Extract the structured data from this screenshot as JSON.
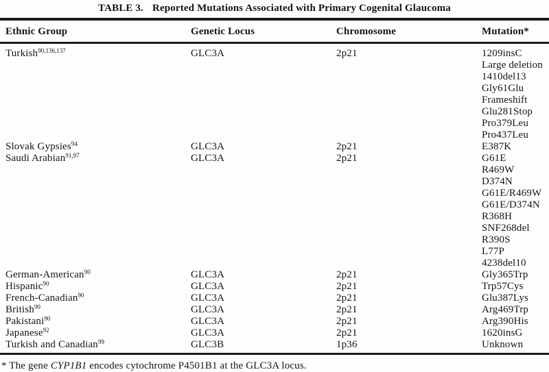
{
  "title": {
    "label": "TABLE 3.",
    "text": "Reported Mutations Associated with Primary Cogenital Glaucoma"
  },
  "columns": [
    "Ethnic Group",
    "Genetic Locus",
    "Chromosome",
    "Mutation*"
  ],
  "table": {
    "groups": [
      {
        "ethnic": "Turkish",
        "refs": "90,136,137",
        "locus": "GLC3A",
        "chromosome": "2p21",
        "mutations": [
          "1209insC",
          "Large deletion",
          "1410del13",
          "Gly61Glu",
          "Frameshift",
          "Glu281Stop",
          "Pro379Leu",
          "Pro437Leu"
        ]
      },
      {
        "ethnic": "Slovak Gypsies",
        "refs": "94",
        "locus": "GLC3A",
        "chromosome": "2p21",
        "mutations": [
          "E387K"
        ]
      },
      {
        "ethnic": "Saudi Arabian",
        "refs": "91,97",
        "locus": "GLC3A",
        "chromosome": "2p21",
        "mutations": [
          "G61E",
          "R469W",
          "D374N",
          "G61E/R469W",
          "G61E/D374N",
          "R368H",
          "SNF268del",
          "R390S",
          "L77P",
          "4238del10"
        ]
      },
      {
        "ethnic": "German-American",
        "refs": "90",
        "locus": "GLC3A",
        "chromosome": "2p21",
        "mutations": [
          "Gly365Trp"
        ]
      },
      {
        "ethnic": "Hispanic",
        "refs": "90",
        "locus": "GLC3A",
        "chromosome": "2p21",
        "mutations": [
          "Trp57Cys"
        ]
      },
      {
        "ethnic": "French-Canadian",
        "refs": "90",
        "locus": "GLC3A",
        "chromosome": "2p21",
        "mutations": [
          "Glu387Lys"
        ]
      },
      {
        "ethnic": "British",
        "refs": "90",
        "locus": "GLC3A",
        "chromosome": "2p21",
        "mutations": [
          "Arg469Trp"
        ]
      },
      {
        "ethnic": "Pakistani",
        "refs": "90",
        "locus": "GLC3A",
        "chromosome": "2p21",
        "mutations": [
          "Arg390His"
        ]
      },
      {
        "ethnic": "Japanese",
        "refs": "92",
        "locus": "GLC3A",
        "chromosome": "2p21",
        "mutations": [
          "1620insG"
        ]
      },
      {
        "ethnic": "Turkish and Canadian",
        "refs": "99",
        "locus": "GLC3B",
        "chromosome": "1p36",
        "mutations": [
          "Unknown"
        ]
      }
    ]
  },
  "footnote": {
    "marker": "*",
    "prefix": "The gene",
    "gene": "CYP1B1",
    "suffix": "encodes cytochrome P4501B1 at the GLC3A locus."
  }
}
